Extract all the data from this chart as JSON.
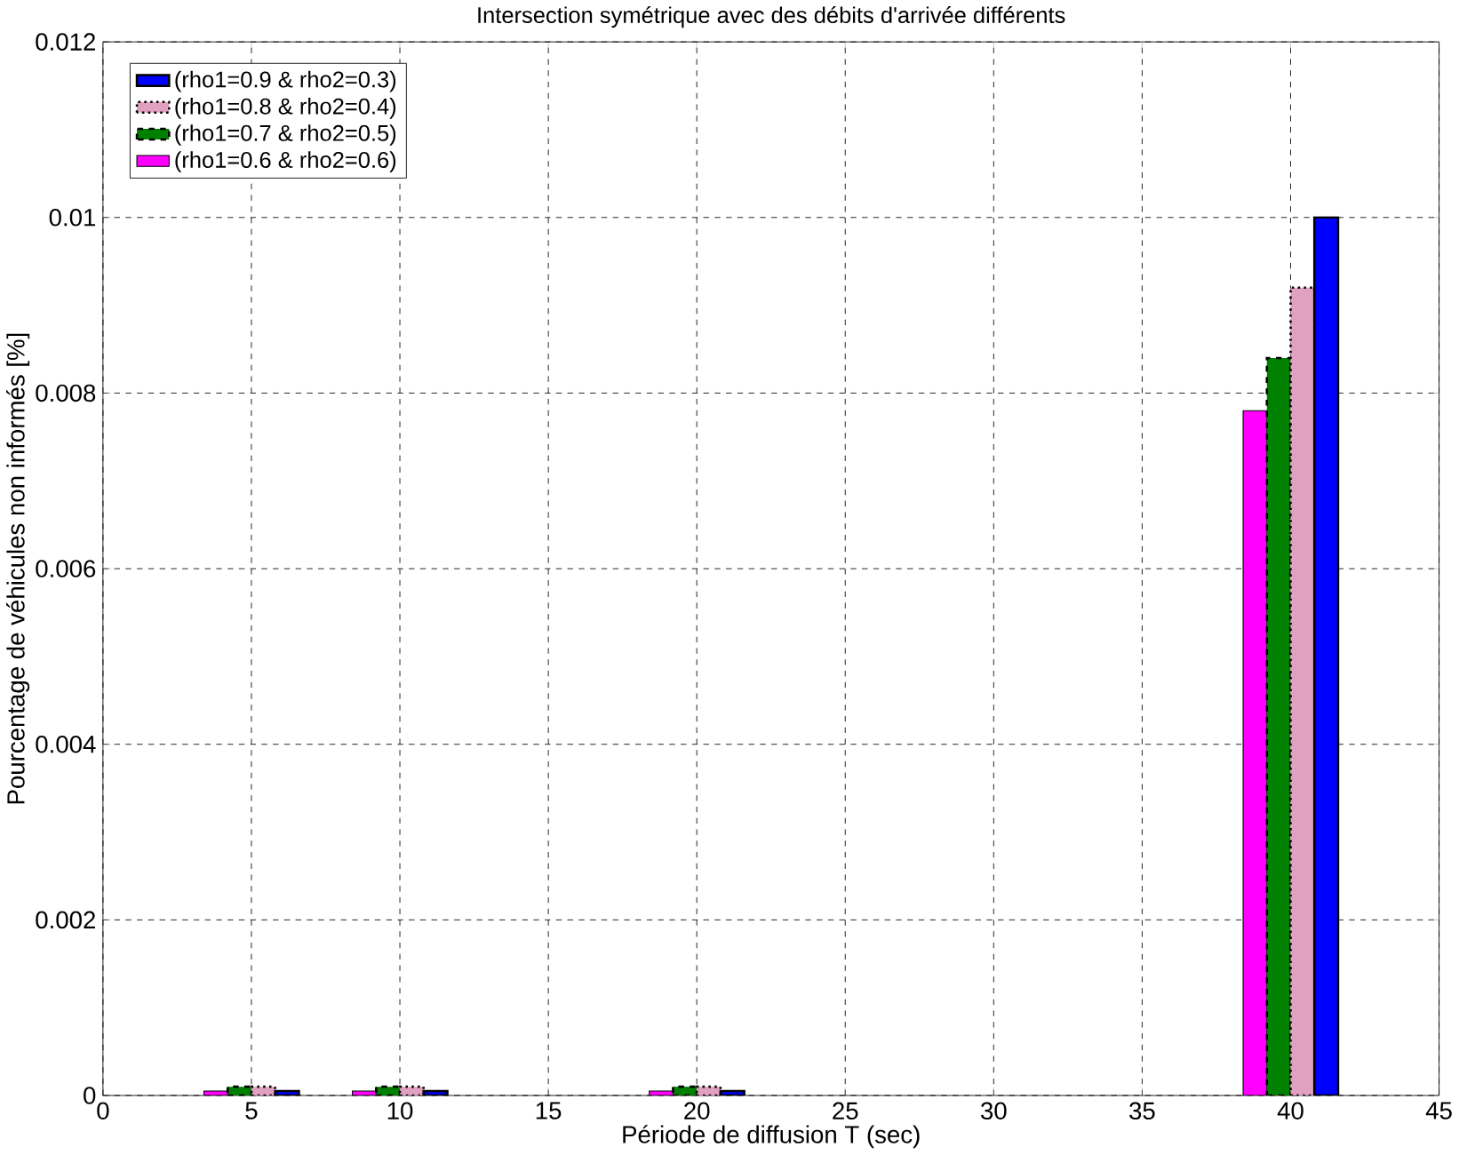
{
  "chart_data": {
    "type": "bar",
    "title": "Intersection symétrique avec des débits d'arrivée différents",
    "xlabel": "Période de diffusion T (sec)",
    "ylabel": "Pourcentage de véhicules non informés [%]",
    "x": [
      5,
      10,
      20,
      40
    ],
    "series": [
      {
        "name": "(rho1=0.6 & rho2=0.6)",
        "color": "#ff00ff",
        "line_style": "solid",
        "values": [
          5e-05,
          5e-05,
          5e-05,
          0.0078
        ]
      },
      {
        "name": "(rho1=0.7 & rho2=0.5)",
        "color": "#008000",
        "line_style": "dashed",
        "values": [
          0.0001,
          0.0001,
          0.0001,
          0.0084
        ]
      },
      {
        "name": "(rho1=0.8 & rho2=0.4)",
        "color": "#e0a0c0",
        "line_style": "dotted",
        "values": [
          0.0001,
          0.0001,
          0.0001,
          0.0092
        ]
      },
      {
        "name": "(rho1=0.9 & rho2=0.3)",
        "color": "#0000ff",
        "line_style": "solid",
        "values": [
          5e-05,
          5e-05,
          5e-05,
          0.01
        ]
      }
    ],
    "xlim": [
      0,
      45
    ],
    "xticks": [
      0,
      5,
      10,
      15,
      20,
      25,
      30,
      35,
      40,
      45
    ],
    "ylim": [
      0,
      0.012
    ],
    "yticks": [
      0,
      0.002,
      0.004,
      0.006,
      0.008,
      0.01,
      0.012
    ],
    "grid": true,
    "legend": "top left"
  }
}
